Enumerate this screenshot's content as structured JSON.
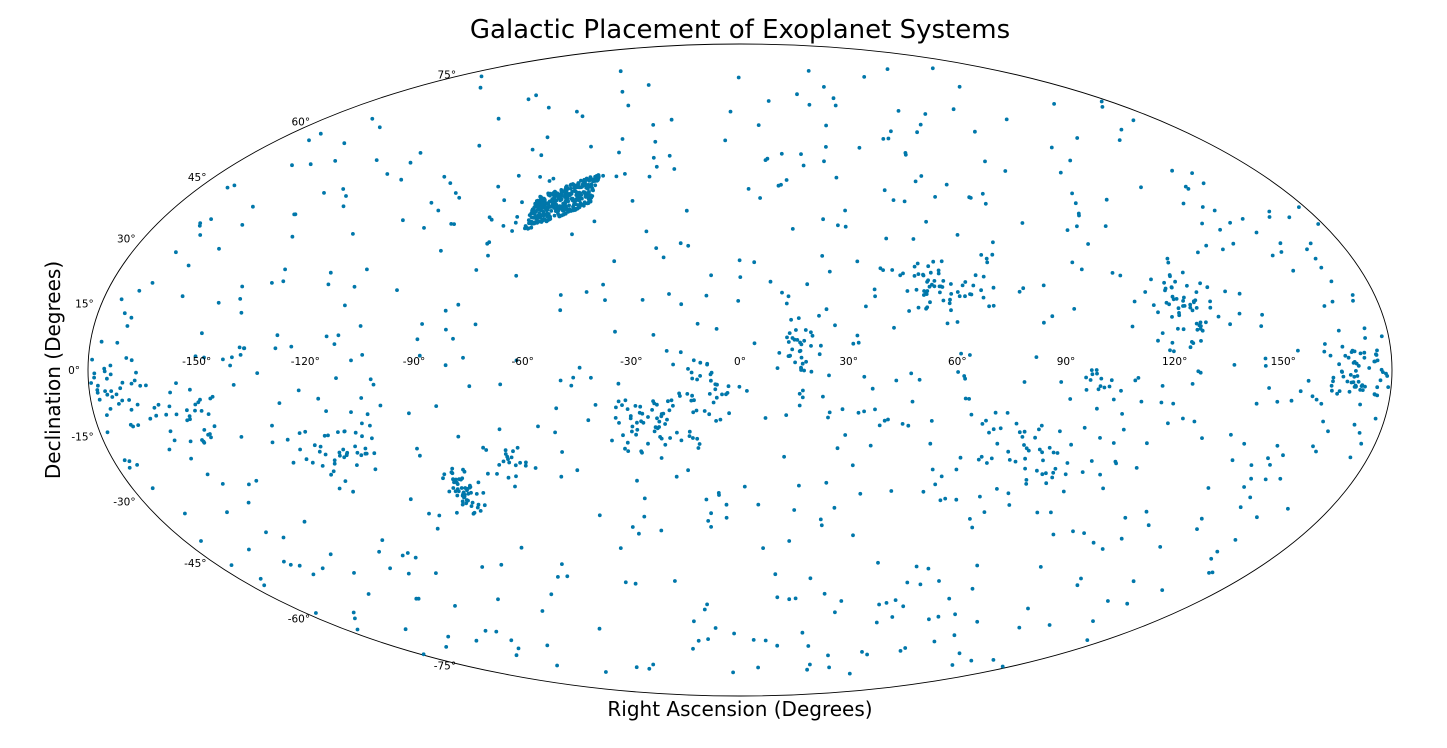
{
  "chart_data": {
    "type": "scatter",
    "projection": "mollweide",
    "title": "Galactic Placement of Exoplanet Systems",
    "xlabel": "Right Ascension (Degrees)",
    "ylabel": "Declination (Degrees)",
    "x_ticks": [
      "-150°",
      "-120°",
      "-90°",
      "-60°",
      "-30°",
      "0°",
      "30°",
      "60°",
      "90°",
      "120°",
      "150°"
    ],
    "x_tick_values": [
      -150,
      -120,
      -90,
      -60,
      -30,
      0,
      30,
      60,
      90,
      120,
      150
    ],
    "y_ticks": [
      "-75°",
      "-60°",
      "-45°",
      "-30°",
      "-15°",
      "0°",
      "15°",
      "30°",
      "45°",
      "60°",
      "75°"
    ],
    "y_tick_values": [
      -75,
      -60,
      -45,
      -30,
      -15,
      0,
      15,
      30,
      45,
      60,
      75
    ],
    "xlim": [
      -180,
      180
    ],
    "ylim": [
      -90,
      90
    ],
    "grid": false,
    "point_color": "#0077aa",
    "background_points": 760,
    "clusters": [
      {
        "ra": -57,
        "dec": 39,
        "ra_spread": 9,
        "dec_spread": 4,
        "count": 380,
        "shape": "tiles"
      },
      {
        "ra": 55,
        "dec": 18,
        "ra_spread": 8,
        "dec_spread": 4,
        "count": 55
      },
      {
        "ra": 126,
        "dec": 14,
        "ra_spread": 5,
        "dec_spread": 6,
        "count": 60
      },
      {
        "ra": 170,
        "dec": 0,
        "ra_spread": 6,
        "dec_spread": 4,
        "count": 70
      },
      {
        "ra": -176,
        "dec": -5,
        "ra_spread": 5,
        "dec_spread": 4,
        "count": 40
      },
      {
        "ra": -155,
        "dec": -10,
        "ra_spread": 4,
        "dec_spread": 4,
        "count": 30
      },
      {
        "ra": -115,
        "dec": -18,
        "ra_spread": 8,
        "dec_spread": 4,
        "count": 40
      },
      {
        "ra": -82,
        "dec": -28,
        "ra_spread": 2,
        "dec_spread": 3,
        "count": 50
      },
      {
        "ra": -25,
        "dec": -12,
        "ra_spread": 5,
        "dec_spread": 3,
        "count": 45
      },
      {
        "ra": 16,
        "dec": 4,
        "ra_spread": 4,
        "dec_spread": 5,
        "count": 40
      },
      {
        "ra": -10,
        "dec": -5,
        "ra_spread": 4,
        "dec_spread": 4,
        "count": 30
      },
      {
        "ra": 85,
        "dec": -20,
        "ra_spread": 10,
        "dec_spread": 5,
        "count": 35
      },
      {
        "ra": 100,
        "dec": -3,
        "ra_spread": 3,
        "dec_spread": 2,
        "count": 15
      },
      {
        "ra": -67,
        "dec": -20,
        "ra_spread": 3,
        "dec_spread": 2,
        "count": 20
      }
    ]
  }
}
